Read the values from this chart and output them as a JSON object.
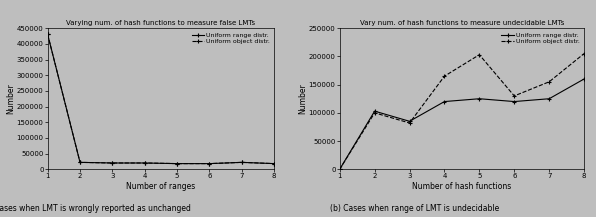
{
  "left_chart": {
    "title": "Varying num. of hash functions to measure false LMTs",
    "xlabel": "Number of ranges",
    "ylabel": "Number",
    "xlim": [
      1,
      8
    ],
    "ylim": [
      0,
      450000
    ],
    "yticks": [
      0,
      50000,
      100000,
      150000,
      200000,
      250000,
      300000,
      350000,
      400000,
      450000
    ],
    "xticks": [
      1,
      2,
      3,
      4,
      5,
      6,
      7,
      8
    ],
    "series": [
      {
        "label": "Uniform range distr.",
        "x": [
          1,
          2,
          3,
          4,
          5,
          6,
          7,
          8
        ],
        "y": [
          430000,
          22000,
          20000,
          20000,
          18000,
          18000,
          22000,
          18000
        ],
        "color": "#000000",
        "linestyle": "-",
        "marker": "+"
      },
      {
        "label": "Uniform object distr.",
        "x": [
          1,
          2,
          3,
          4,
          5,
          6,
          7,
          8
        ],
        "y": [
          430000,
          22000,
          20000,
          20000,
          18000,
          18000,
          22000,
          18000
        ],
        "color": "#000000",
        "linestyle": "--",
        "marker": "+"
      }
    ]
  },
  "right_chart": {
    "title": "Vary num. of hash functions to measure undecidable LMTs",
    "xlabel": "Number of hash functions",
    "ylabel": "Number",
    "xlim": [
      1,
      8
    ],
    "ylim": [
      0,
      250000
    ],
    "yticks": [
      0,
      50000,
      100000,
      150000,
      200000,
      250000
    ],
    "xticks": [
      1,
      2,
      3,
      4,
      5,
      6,
      7,
      8
    ],
    "series": [
      {
        "label": "Uniform range distr.",
        "x": [
          1,
          2,
          3,
          4,
          5,
          6,
          7,
          8
        ],
        "y": [
          0,
          103000,
          85000,
          120000,
          125000,
          120000,
          125000,
          160000
        ],
        "color": "#000000",
        "linestyle": "-",
        "marker": "+"
      },
      {
        "label": "Uniform object distr.",
        "x": [
          1,
          2,
          3,
          4,
          5,
          6,
          7,
          8
        ],
        "y": [
          0,
          100000,
          82000,
          165000,
          203000,
          130000,
          155000,
          205000
        ],
        "color": "#000000",
        "linestyle": "--",
        "marker": "+"
      }
    ]
  },
  "caption_left": "(a) Cases when LMT is wrongly reported as unchanged",
  "caption_right": "(b) Cases when range of LMT is undecidable",
  "bg_color": "#bebebe",
  "plot_bg_color": "#bebebe"
}
